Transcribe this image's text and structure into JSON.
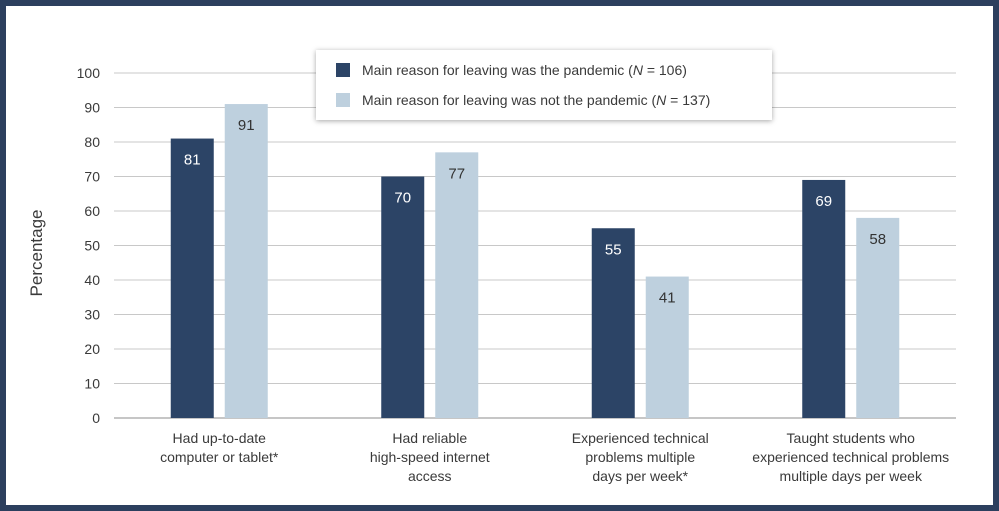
{
  "chart_data": {
    "type": "bar",
    "ylabel": "Percentage",
    "ylim": [
      0,
      100
    ],
    "yticks": [
      0,
      10,
      20,
      30,
      40,
      50,
      60,
      70,
      80,
      90,
      100
    ],
    "grid": true,
    "legend_position": "top-center",
    "categories": [
      [
        "Had up-to-date",
        "computer or tablet*"
      ],
      [
        "Had reliable",
        "high-speed internet",
        "access"
      ],
      [
        "Experienced technical",
        "problems multiple",
        "days per week*"
      ],
      [
        "Taught students who",
        "experienced technical problems",
        "multiple days per week"
      ]
    ],
    "series": [
      {
        "name": "Main reason for leaving was the pandemic (N = 106)",
        "name_pre": "Main reason for leaving was the pandemic (",
        "name_italic": "N",
        "name_post": " = 106)",
        "color": "#2c4466",
        "label_color": "#ffffff",
        "values": [
          81,
          70,
          55,
          69
        ]
      },
      {
        "name": "Main reason for leaving was not the pandemic (N = 137)",
        "name_pre": "Main reason for leaving was not the pandemic (",
        "name_italic": "N",
        "name_post": " = 137)",
        "color": "#bed0de",
        "label_color": "#333333",
        "values": [
          91,
          77,
          41,
          58
        ]
      }
    ]
  }
}
